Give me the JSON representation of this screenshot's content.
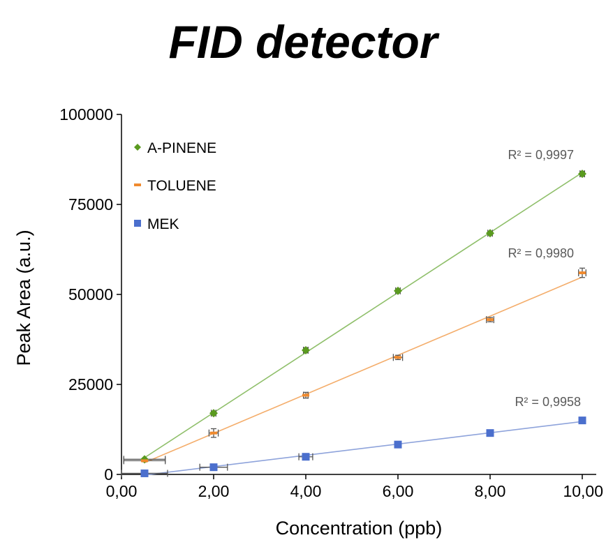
{
  "chart_data": {
    "type": "scatter",
    "title": "FID detector",
    "xlabel": "Concentration (ppb)",
    "ylabel": "Peak Area (a.u.)",
    "xlim": [
      0,
      10
    ],
    "ylim": [
      0,
      100000
    ],
    "x_ticks": [
      "0,00",
      "2,00",
      "4,00",
      "6,00",
      "8,00",
      "10,00"
    ],
    "y_ticks": [
      "0",
      "25000",
      "50000",
      "75000",
      "100000"
    ],
    "legend_position": "top-left",
    "series": [
      {
        "name": "A-PINENE",
        "color": "#5a9a1f",
        "line_color": "#8fbf6a",
        "marker": "diamond",
        "x": [
          0.5,
          2,
          4,
          6,
          8,
          10
        ],
        "y": [
          4200,
          17000,
          34500,
          51000,
          67000,
          83500
        ],
        "x_err": [
          0.45,
          0.05,
          0.05,
          0.05,
          0.05,
          0.05
        ],
        "y_err": [
          300,
          500,
          700,
          500,
          500,
          700
        ],
        "r2": "R² = 0,9997"
      },
      {
        "name": "TOLUENE",
        "color": "#f08a2e",
        "line_color": "#f4ad6b",
        "marker": "dash",
        "x": [
          0.5,
          2,
          4,
          6,
          8,
          10
        ],
        "y": [
          3800,
          11500,
          22000,
          32500,
          43000,
          56000
        ],
        "x_err": [
          0.45,
          0.1,
          0.05,
          0.1,
          0.08,
          0.08
        ],
        "y_err": [
          300,
          1200,
          800,
          600,
          600,
          1300
        ],
        "r2": "R² = 0,9980"
      },
      {
        "name": "MEK",
        "color": "#4b6fcd",
        "line_color": "#8ea3db",
        "marker": "square",
        "x": [
          0.5,
          2,
          4,
          6,
          8,
          10
        ],
        "y": [
          300,
          2000,
          4900,
          8300,
          11500,
          15000
        ],
        "x_err": [
          0.5,
          0.3,
          0.15,
          0.05,
          0.05,
          0.05
        ],
        "y_err": [
          200,
          300,
          300,
          300,
          300,
          300
        ],
        "r2": "R² = 0,9958"
      }
    ]
  }
}
